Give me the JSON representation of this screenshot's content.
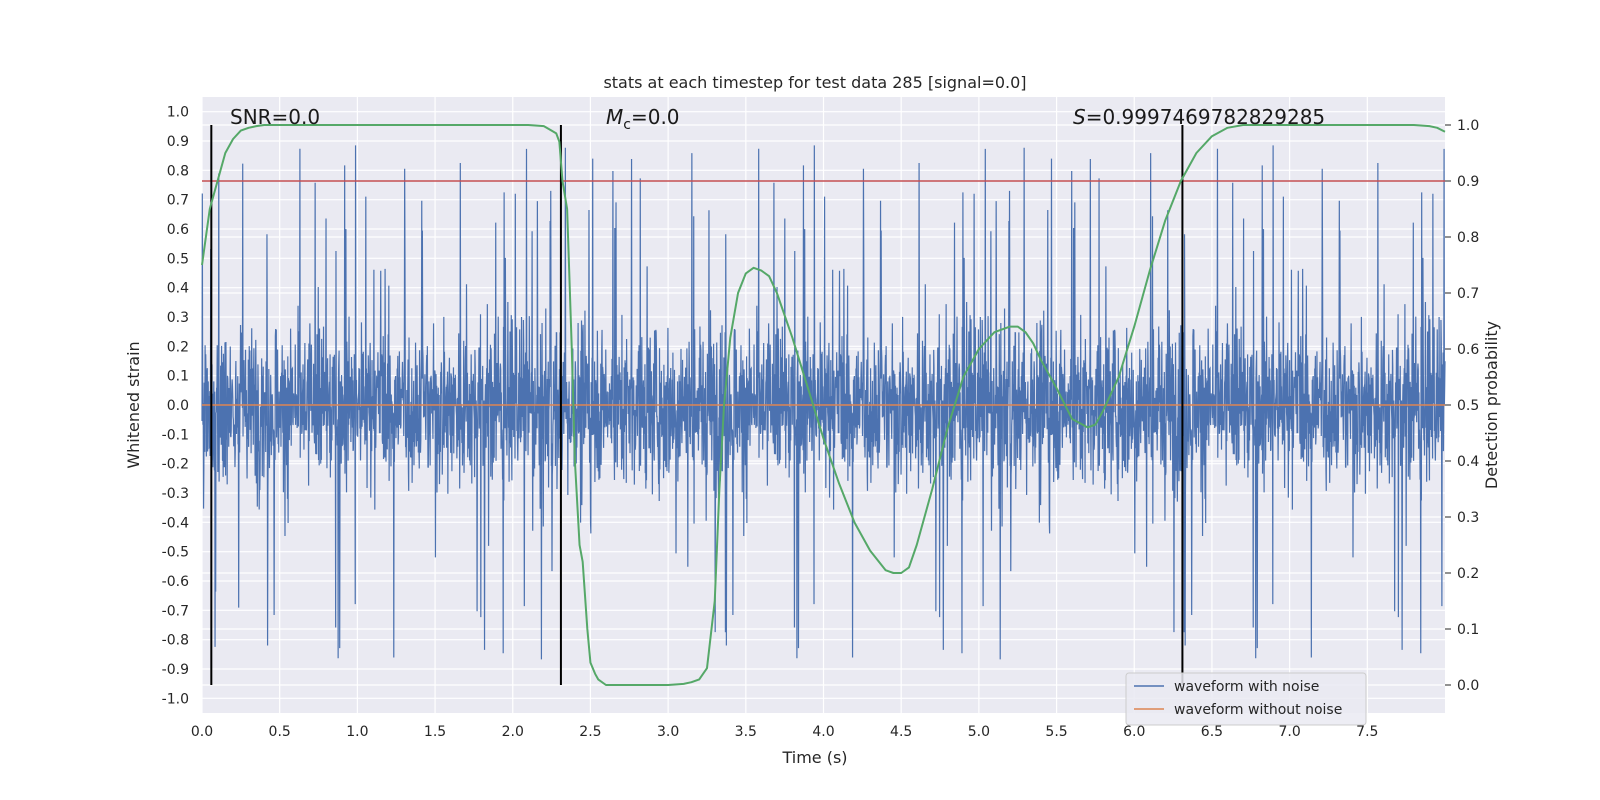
{
  "chart_data": {
    "type": "line",
    "title": "stats at each timestep for test data 285 [signal=0.0]",
    "xlabel": "Time (s)",
    "ylabel": "Whitened strain",
    "y2label": "Detection probability",
    "xlim": [
      0.0,
      8.0
    ],
    "ylim": [
      -1.05,
      1.05
    ],
    "y2lim": [
      -0.05,
      1.05
    ],
    "xticks": [
      "0.0",
      "0.5",
      "1.0",
      "1.5",
      "2.0",
      "2.5",
      "3.0",
      "3.5",
      "4.0",
      "4.5",
      "5.0",
      "5.5",
      "6.0",
      "6.5",
      "7.0",
      "7.5"
    ],
    "yticks": [
      "1.0",
      "0.9",
      "0.8",
      "0.7",
      "0.6",
      "0.5",
      "0.4",
      "0.3",
      "0.2",
      "0.1",
      "0.0",
      "-0.1",
      "-0.2",
      "-0.3",
      "-0.4",
      "-0.5",
      "-0.6",
      "-0.7",
      "-0.8",
      "-0.9",
      "-1.0"
    ],
    "y2ticks": [
      "1.0",
      "0.9",
      "0.8",
      "0.7",
      "0.6",
      "0.5",
      "0.4",
      "0.3",
      "0.2",
      "0.1",
      "0.0"
    ],
    "annotations": {
      "snr": "SNR=0.0",
      "mc_symbol": "M",
      "mc_sub": "c",
      "mc_value": "=0.0",
      "s_symbol": "S",
      "s_value": "=0.9997469782829285"
    },
    "threshold_line": {
      "axis": "right",
      "value": 0.9,
      "color": "#c44e52"
    },
    "vertical_markers": [
      0.06,
      2.31,
      6.31
    ],
    "series": [
      {
        "name": "waveform with noise",
        "color": "#4c72b0",
        "axis": "left",
        "kind": "noise",
        "amplitude": 0.45,
        "range": [
          -1.0,
          1.0
        ]
      },
      {
        "name": "waveform without noise",
        "color": "#dd8452",
        "axis": "left",
        "x": [
          0.0,
          8.0
        ],
        "y": [
          0.0,
          0.0
        ]
      },
      {
        "name": "detection probability",
        "color": "#55a868",
        "axis": "right",
        "x": [
          0.0,
          0.05,
          0.1,
          0.15,
          0.2,
          0.25,
          0.3,
          0.35,
          0.4,
          0.5,
          0.6,
          0.8,
          1.0,
          1.5,
          2.0,
          2.1,
          2.2,
          2.25,
          2.28,
          2.3,
          2.32,
          2.35,
          2.38,
          2.4,
          2.43,
          2.45,
          2.48,
          2.5,
          2.53,
          2.55,
          2.6,
          2.7,
          2.8,
          3.0,
          3.1,
          3.15,
          3.2,
          3.25,
          3.3,
          3.33,
          3.36,
          3.4,
          3.45,
          3.5,
          3.55,
          3.6,
          3.65,
          3.7,
          3.8,
          3.9,
          4.0,
          4.1,
          4.2,
          4.3,
          4.4,
          4.45,
          4.5,
          4.55,
          4.6,
          4.7,
          4.8,
          4.9,
          5.0,
          5.1,
          5.2,
          5.25,
          5.3,
          5.35,
          5.4,
          5.5,
          5.6,
          5.7,
          5.75,
          5.8,
          5.85,
          5.9,
          6.0,
          6.1,
          6.2,
          6.3,
          6.4,
          6.5,
          6.6,
          6.7,
          6.8,
          7.0,
          7.5,
          7.8,
          7.9,
          7.95,
          8.0
        ],
        "y": [
          0.75,
          0.85,
          0.9,
          0.95,
          0.975,
          0.99,
          0.995,
          0.998,
          1.0,
          1.0,
          1.0,
          1.0,
          1.0,
          1.0,
          1.0,
          1.0,
          0.998,
          0.99,
          0.985,
          0.97,
          0.9,
          0.85,
          0.6,
          0.4,
          0.25,
          0.22,
          0.1,
          0.04,
          0.02,
          0.01,
          0.0,
          0.0,
          0.0,
          0.0,
          0.002,
          0.005,
          0.01,
          0.03,
          0.15,
          0.35,
          0.5,
          0.62,
          0.7,
          0.735,
          0.745,
          0.74,
          0.73,
          0.7,
          0.62,
          0.53,
          0.44,
          0.36,
          0.29,
          0.24,
          0.205,
          0.2,
          0.2,
          0.21,
          0.25,
          0.35,
          0.46,
          0.55,
          0.6,
          0.63,
          0.64,
          0.64,
          0.63,
          0.61,
          0.58,
          0.53,
          0.475,
          0.46,
          0.465,
          0.49,
          0.52,
          0.55,
          0.64,
          0.74,
          0.83,
          0.9,
          0.95,
          0.98,
          0.995,
          1.0,
          1.0,
          1.0,
          1.0,
          1.0,
          0.998,
          0.995,
          0.988
        ]
      }
    ],
    "legend": {
      "location": "bottom-right",
      "entries": [
        "waveform with noise",
        "waveform without noise"
      ]
    }
  }
}
